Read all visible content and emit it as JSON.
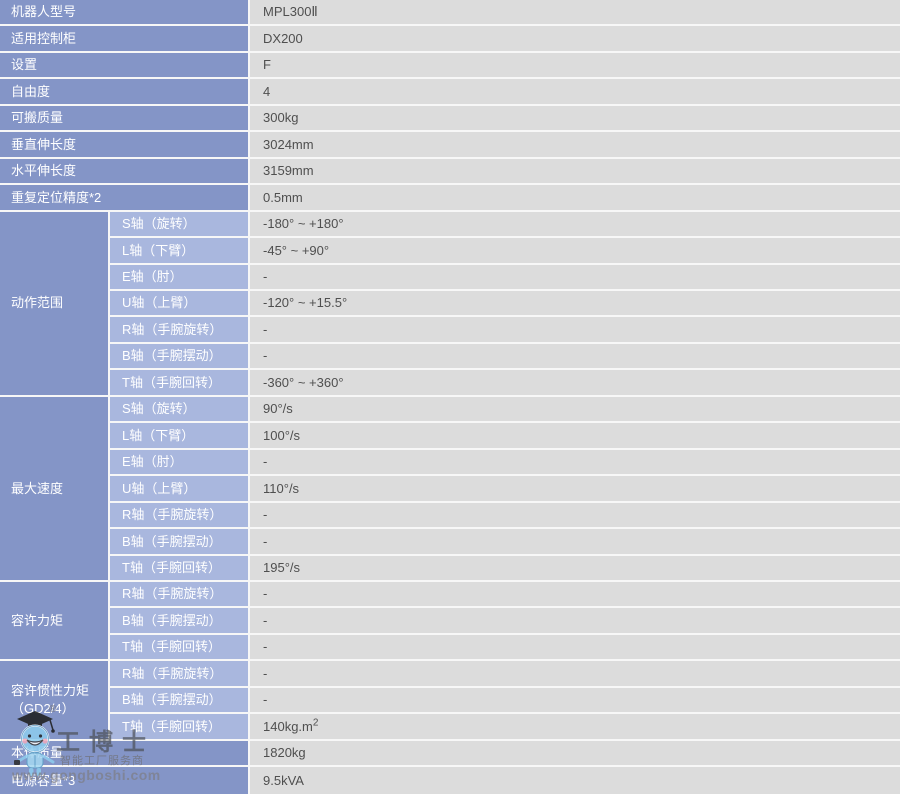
{
  "colors": {
    "label_bg": "#8495c7",
    "sublabel_bg": "#a9b7de",
    "value_bg": "#dcdcdc",
    "row_separator": "#f7f7f7",
    "label_text": "#ffffff",
    "value_text": "#4f4f4f",
    "mascot_blue": "#8ecdee",
    "watermark_text": "#6e6e74"
  },
  "spec_table": {
    "sections": [
      {
        "label": "机器人型号",
        "value": "MPL300Ⅱ"
      },
      {
        "label": "适用控制柜",
        "value": "DX200"
      },
      {
        "label": "设置",
        "value": "F"
      },
      {
        "label": "自由度",
        "value": "4"
      },
      {
        "label": "可搬质量",
        "value": "300kg"
      },
      {
        "label": "垂直伸长度",
        "value": "3024mm"
      },
      {
        "label": "水平伸长度",
        "value": "3159mm"
      },
      {
        "label": "重复定位精度*2",
        "value": "0.5mm"
      },
      {
        "label": "动作范围",
        "rows": [
          {
            "sub": "S轴（旋转）",
            "value": "-180° ~ +180°"
          },
          {
            "sub": "L轴（下臂）",
            "value": "-45° ~ +90°"
          },
          {
            "sub": "E轴（肘）",
            "value": "-"
          },
          {
            "sub": "U轴（上臂）",
            "value": "-120° ~ +15.5°"
          },
          {
            "sub": "R轴（手腕旋转）",
            "value": "-"
          },
          {
            "sub": "B轴（手腕摆动）",
            "value": "-"
          },
          {
            "sub": "T轴（手腕回转）",
            "value": "-360° ~ +360°"
          }
        ]
      },
      {
        "label": "最大速度",
        "rows": [
          {
            "sub": "S轴（旋转）",
            "value": "90°/s"
          },
          {
            "sub": "L轴（下臂）",
            "value": "100°/s"
          },
          {
            "sub": "E轴（肘）",
            "value": "-"
          },
          {
            "sub": "U轴（上臂）",
            "value": "110°/s"
          },
          {
            "sub": "R轴（手腕旋转）",
            "value": "-"
          },
          {
            "sub": "B轴（手腕摆动）",
            "value": "-"
          },
          {
            "sub": "T轴（手腕回转）",
            "value": "195°/s"
          }
        ]
      },
      {
        "label": "容许力矩",
        "rows": [
          {
            "sub": "R轴（手腕旋转）",
            "value": "-"
          },
          {
            "sub": "B轴（手腕摆动）",
            "value": "-"
          },
          {
            "sub": "T轴（手腕回转）",
            "value": "-"
          }
        ]
      },
      {
        "label": "容许惯性力矩（GD2/4）",
        "rows": [
          {
            "sub": "R轴（手腕旋转）",
            "value": "-"
          },
          {
            "sub": "B轴（手腕摆动）",
            "value": "-"
          },
          {
            "sub": "T轴（手腕回转）",
            "value": "140kg.m",
            "value_sup": "2"
          }
        ]
      },
      {
        "label": "本体质量",
        "value": "1820kg"
      },
      {
        "label": "电源容量*3",
        "value": "9.5kVA"
      }
    ]
  },
  "watermark": {
    "brand": "工博士",
    "registered_mark": "®",
    "tagline": "智能工厂服务商",
    "website": "www.gongboshi.com",
    "mascot": "doctor-robot-mascot"
  }
}
